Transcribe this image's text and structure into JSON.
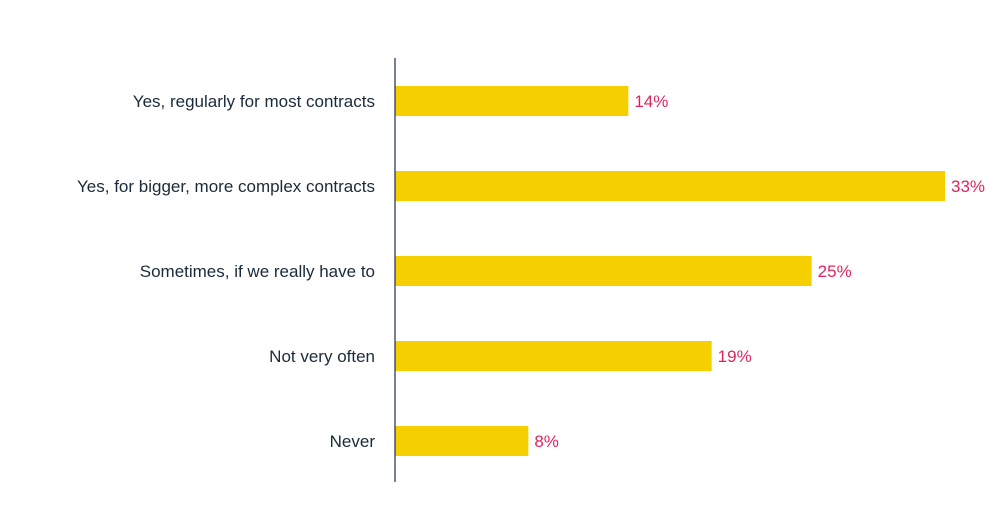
{
  "chart_data": {
    "type": "bar",
    "orientation": "horizontal",
    "categories": [
      "Yes, regularly for most contracts",
      "Yes, for bigger, more complex contracts",
      "Sometimes, if we really have to",
      "Not very often",
      "Never"
    ],
    "values": [
      14,
      33,
      25,
      19,
      8
    ],
    "data_labels": [
      "14%",
      "33%",
      "25%",
      "19%",
      "8%"
    ],
    "value_unit": "%",
    "xlim": [
      0,
      33
    ],
    "grid": false,
    "legend": "none"
  },
  "colors": {
    "bar": "#f5cf00",
    "value_label": "#e0245e",
    "axis": "#1f2d4d",
    "category_label": "#1a2a3a"
  }
}
